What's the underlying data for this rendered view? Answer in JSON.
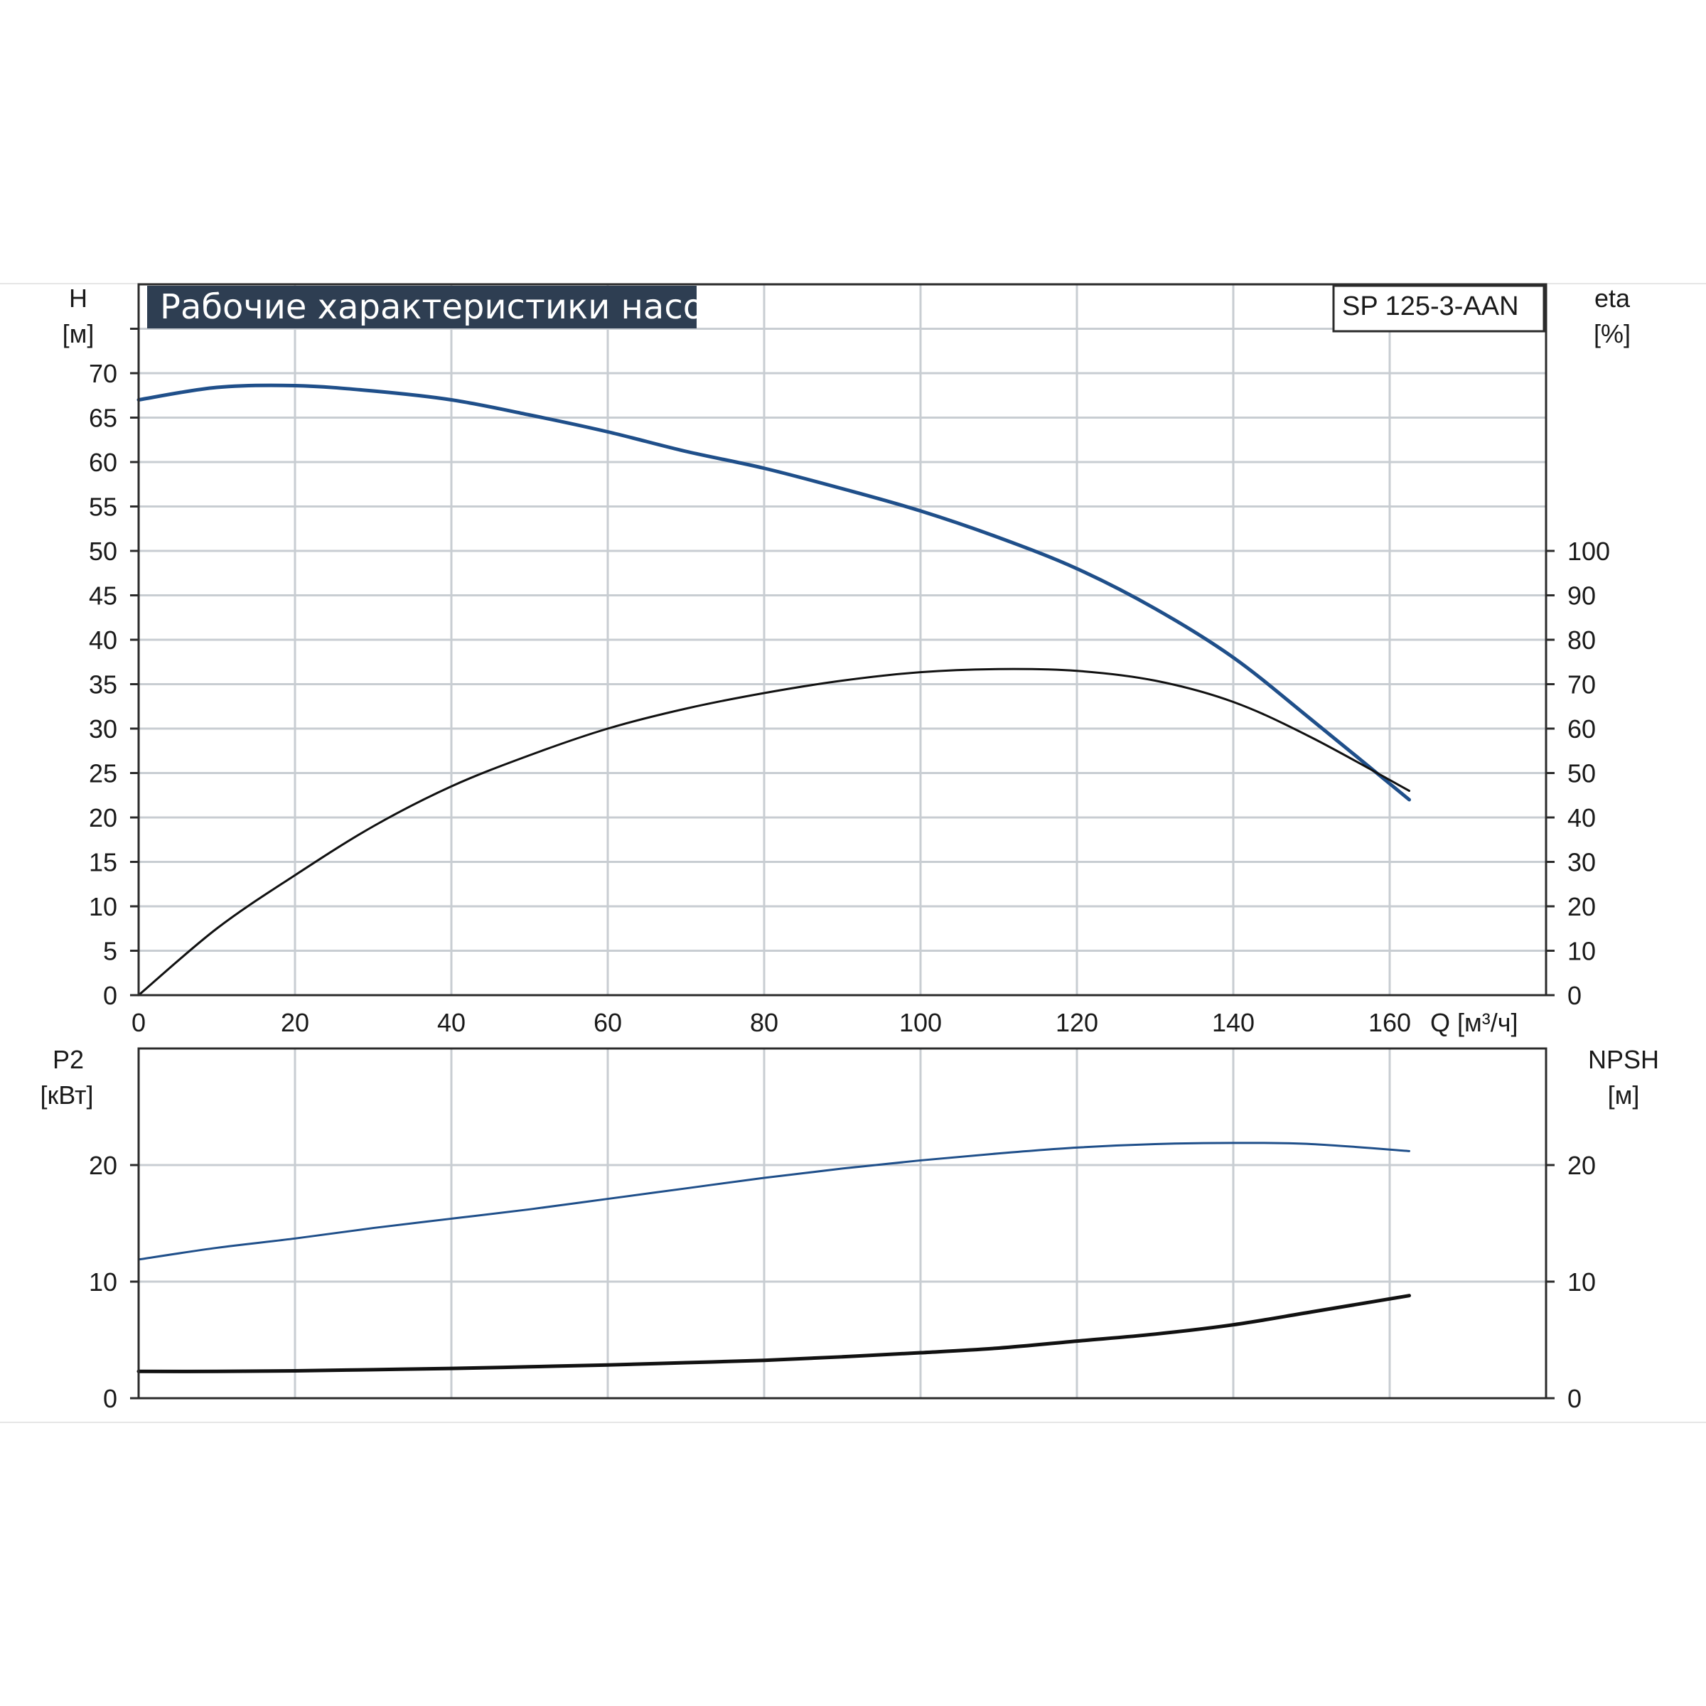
{
  "chart_data": [
    {
      "type": "line",
      "title": "Рабочие характеристики насоса",
      "model_label": "SP 125-3-AAN",
      "xlabel": "Q [м³/ч]",
      "x_ticks": [
        0,
        20,
        40,
        60,
        80,
        100,
        120,
        140,
        160
      ],
      "xlim": [
        0,
        180
      ],
      "y_left": {
        "label_top": "H",
        "label_unit": "[м]",
        "ylim": [
          0,
          80
        ],
        "ticks": [
          0,
          5,
          10,
          15,
          20,
          25,
          30,
          35,
          40,
          45,
          50,
          55,
          60,
          65,
          70
        ]
      },
      "y_right": {
        "label_top": "eta",
        "label_unit": "[%]",
        "ylim": [
          0,
          160
        ],
        "ticks": [
          0,
          10,
          20,
          30,
          40,
          50,
          60,
          70,
          80,
          90,
          100
        ]
      },
      "grid": true,
      "series": [
        {
          "axis": "left",
          "color": "#1f4f8a",
          "x": [
            0,
            10,
            20,
            30,
            40,
            50,
            60,
            70,
            80,
            90,
            100,
            110,
            120,
            130,
            140,
            150,
            162.5
          ],
          "y": [
            67,
            68.4,
            68.6,
            68,
            67,
            65.3,
            63.4,
            61.2,
            59.3,
            57,
            54.5,
            51.5,
            48,
            43.5,
            38,
            31,
            22
          ]
        },
        {
          "axis": "right",
          "color": "#111111",
          "x": [
            0,
            10,
            20,
            30,
            40,
            50,
            60,
            70,
            80,
            90,
            100,
            110,
            120,
            130,
            140,
            150,
            162.5
          ],
          "y": [
            0,
            15,
            27,
            38,
            47,
            54,
            60,
            64.5,
            68,
            70.8,
            72.7,
            73.4,
            73,
            70.8,
            66,
            58,
            46
          ]
        }
      ]
    },
    {
      "type": "line",
      "x_ticks": [
        0,
        20,
        40,
        60,
        80,
        100,
        120,
        140,
        160
      ],
      "xlim": [
        0,
        180
      ],
      "y_left": {
        "label_top": "P2",
        "label_unit": "[кВт]",
        "ylim": [
          0,
          30
        ],
        "ticks": [
          0,
          10,
          20
        ]
      },
      "y_right": {
        "label_top": "NPSH",
        "label_unit": "[м]",
        "ylim": [
          0,
          30
        ],
        "ticks": [
          0,
          10,
          20
        ]
      },
      "grid": true,
      "series": [
        {
          "axis": "left",
          "color": "#1f4f8a",
          "x": [
            0,
            10,
            20,
            30,
            40,
            50,
            60,
            70,
            80,
            90,
            100,
            110,
            120,
            130,
            140,
            150,
            162.5
          ],
          "y": [
            11.9,
            12.9,
            13.7,
            14.6,
            15.4,
            16.2,
            17.1,
            18,
            18.9,
            19.7,
            20.4,
            21,
            21.5,
            21.8,
            21.9,
            21.8,
            21.2
          ]
        },
        {
          "axis": "right",
          "color": "#111111",
          "x": [
            0,
            10,
            20,
            30,
            40,
            50,
            60,
            70,
            80,
            90,
            100,
            110,
            120,
            130,
            140,
            150,
            162.5
          ],
          "y": [
            2.3,
            2.3,
            2.35,
            2.45,
            2.55,
            2.7,
            2.85,
            3.05,
            3.25,
            3.55,
            3.9,
            4.3,
            4.9,
            5.5,
            6.3,
            7.4,
            8.8
          ]
        }
      ]
    }
  ]
}
